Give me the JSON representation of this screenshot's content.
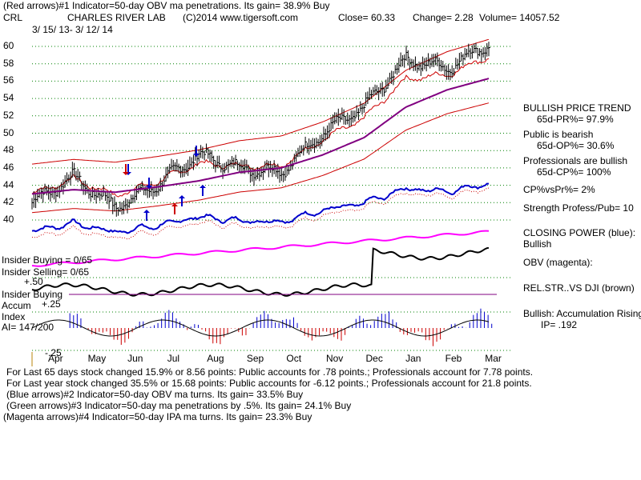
{
  "header": {
    "line1": "(Red arrows)#1 Indicator=50-day OBV ma penetrations. Its gain= 38.9% Buy",
    "symbol": "CRL",
    "company": "CHARLES RIVER LAB",
    "copyright": "(C)2014 www.tigersoft.com",
    "close": "Close=  60.33",
    "change": "Change= 2.28",
    "volume": "Volume= 14057.52",
    "range": "3/ 15/ 13- 3/ 12/ 14"
  },
  "price_axis": [
    "60",
    "58",
    "56",
    "54",
    "52",
    "50",
    "48",
    "46",
    "44",
    "42",
    "40"
  ],
  "months": [
    "Apr",
    "May",
    "Jun",
    "Jul",
    "Aug",
    "Sep",
    "Oct",
    "Nov",
    "Dec",
    "Jan",
    "Feb",
    "Mar"
  ],
  "left_labels": {
    "insider_buying": "Insider Buying = 0/65",
    "insider_selling": "Insider Selling= 0/65",
    "plus50": "+.50",
    "insider_buying2": "Insider Buying",
    "accum": "Accum",
    "plus25": "+.25",
    "index": "Index",
    "ai": "AI= 147/200",
    "minus25": "-.25"
  },
  "right_panel": {
    "bullish_trend": "BULLISH PRICE TREND",
    "pr": "65d-PR%= 97.9%",
    "public": "Public is bearish",
    "op": "65d-OP%= 30.6%",
    "professionals": "Professionals are bullish",
    "cp": "65d-CP%= 100%",
    "cpvspr": "CP%vsPr%=  2%",
    "strength": "Strength Profess/Pub= 10",
    "closing_power": "CLOSING POWER (blue):",
    "bullish": "Bullish",
    "obv": "OBV (magenta):",
    "relstr": "REL.STR..VS DJI (brown)",
    "accum_rising": "Bullish: Accumulation Rising",
    "ip": "IP= .192"
  },
  "footer": [
    "For Last 65 days stock changed  15.9% or  8.56 points:  Public accounts for  .78 points.;  Professionals account for  7.78 points.",
    "For Last year stock changed  35.5% or  15.68 points:  Public accounts for -6.12 points.;  Professionals account for  21.8 points.",
    "(Blue arrows)#2 Indicator=50-day OBV ma turns. Its gain= 33.5% Buy",
    "(Green arrows)#3 Indicator=50-day ma penetrations by .5%. Its gain= 24.1% Buy",
    "(Magenta arrows)#4 Indicator=50-day IPA ma turns. Its gain= 23.3% Buy"
  ],
  "colors": {
    "price": "#000000",
    "band": "#cc0000",
    "ma50": "#800080",
    "closing_power": "#0000cc",
    "obv": "#ff00ff",
    "relstr": "#000000",
    "accum_hist": "#0000cc",
    "accum_neg": "#cc0000",
    "grid": "#008000"
  },
  "chart_data": {
    "type": "line",
    "title": "CHARLES RIVER LAB",
    "ylim": [
      40,
      61
    ],
    "x": [
      "Apr",
      "May",
      "Jun",
      "Jul",
      "Aug",
      "Sep",
      "Oct",
      "Nov",
      "Dec",
      "Jan",
      "Feb",
      "Mar"
    ],
    "series": [
      {
        "name": "Close",
        "values": [
          42.0,
          45.0,
          41.5,
          44.0,
          47.5,
          46.0,
          45.5,
          50.0,
          53.0,
          58.5,
          57.5,
          60.3
        ]
      },
      {
        "name": "50-day MA",
        "values": [
          43.0,
          43.5,
          43.2,
          43.8,
          44.5,
          45.5,
          46.0,
          47.5,
          49.5,
          53.0,
          55.0,
          56.3
        ]
      }
    ]
  }
}
